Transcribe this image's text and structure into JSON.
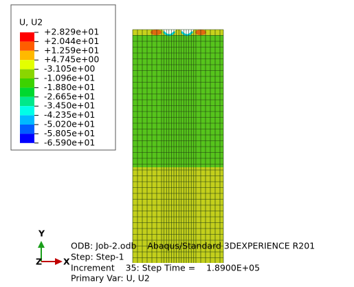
{
  "legend": {
    "title": "U, U2",
    "labels": [
      "+2.829e+01",
      "+2.044e+01",
      "+1.259e+01",
      "+4.745e+00",
      "-3.105e+00",
      "-1.096e+01",
      "-1.880e+01",
      "-2.665e+01",
      "-3.450e+01",
      "-4.235e+01",
      "-5.020e+01",
      "-5.805e+01",
      "-6.590e+01"
    ],
    "colors": [
      "#ff0000",
      "#ff5d00",
      "#ffb900",
      "#e3ff00",
      "#8ad600",
      "#3cd200",
      "#00d82e",
      "#00e88b",
      "#00ffe8",
      "#00b9ff",
      "#005dff",
      "#0000ff"
    ]
  },
  "triad": {
    "y": "Y",
    "x": "X",
    "z": "Z"
  },
  "info": {
    "odb": "ODB: Job-2.odb    Abaqus/Standard 3DEXPERIENCE R201",
    "step": "Step: Step-1",
    "increment": "Increment    35: Step Time =    1.8900E+05",
    "primary_var": "Primary Var: U, U2"
  }
}
